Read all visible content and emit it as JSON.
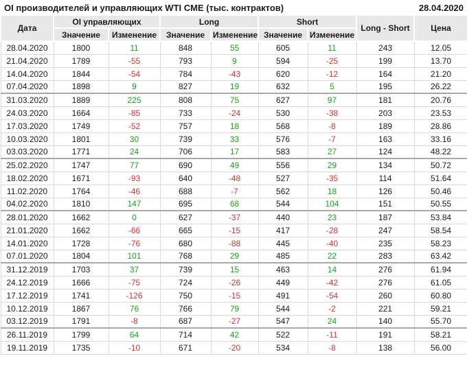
{
  "title": "OI производителей и управляющих WTI CME (тыс. контрактов)",
  "report_date": "28.04.2020",
  "colors": {
    "positive": "#17a317",
    "negative": "#cc3333",
    "header_bg": "#e8e8e8",
    "grid": "#d9d9d9",
    "month_separator": "#a8a8a8"
  },
  "table": {
    "headers": {
      "date": "Дата",
      "groups": [
        {
          "label": "OI управляющих"
        },
        {
          "label": "Long"
        },
        {
          "label": "Short"
        }
      ],
      "sub_value": "Значение",
      "sub_change": "Изменение",
      "long_short": "Long - Short",
      "price": "Цена"
    },
    "rows": [
      {
        "date": "28.04.2020",
        "oi_value": "1800",
        "oi_change": "11",
        "long_value": "848",
        "long_change": "55",
        "short_value": "605",
        "short_change": "11",
        "long_short": "243",
        "price": "12.05",
        "month_start": false
      },
      {
        "date": "21.04.2020",
        "oi_value": "1789",
        "oi_change": "-55",
        "long_value": "793",
        "long_change": "9",
        "short_value": "594",
        "short_change": "-25",
        "long_short": "199",
        "price": "13.70",
        "month_start": false
      },
      {
        "date": "14.04.2020",
        "oi_value": "1844",
        "oi_change": "-54",
        "long_value": "784",
        "long_change": "-43",
        "short_value": "620",
        "short_change": "-12",
        "long_short": "164",
        "price": "21.20",
        "month_start": false
      },
      {
        "date": "07.04.2020",
        "oi_value": "1898",
        "oi_change": "9",
        "long_value": "827",
        "long_change": "19",
        "short_value": "632",
        "short_change": "5",
        "long_short": "195",
        "price": "26.22",
        "month_start": false
      },
      {
        "date": "31.03.2020",
        "oi_value": "1889",
        "oi_change": "225",
        "long_value": "808",
        "long_change": "75",
        "short_value": "627",
        "short_change": "97",
        "long_short": "181",
        "price": "20.76",
        "month_start": true
      },
      {
        "date": "24.03.2020",
        "oi_value": "1664",
        "oi_change": "-85",
        "long_value": "733",
        "long_change": "-24",
        "short_value": "530",
        "short_change": "-38",
        "long_short": "203",
        "price": "23.53",
        "month_start": false
      },
      {
        "date": "17.03.2020",
        "oi_value": "1749",
        "oi_change": "-52",
        "long_value": "757",
        "long_change": "18",
        "short_value": "568",
        "short_change": "-8",
        "long_short": "189",
        "price": "28.86",
        "month_start": false
      },
      {
        "date": "10.03.2020",
        "oi_value": "1801",
        "oi_change": "30",
        "long_value": "739",
        "long_change": "33",
        "short_value": "576",
        "short_change": "-7",
        "long_short": "163",
        "price": "33.16",
        "month_start": false
      },
      {
        "date": "03.03.2020",
        "oi_value": "1771",
        "oi_change": "24",
        "long_value": "706",
        "long_change": "17",
        "short_value": "583",
        "short_change": "27",
        "long_short": "124",
        "price": "48.22",
        "month_start": false
      },
      {
        "date": "25.02.2020",
        "oi_value": "1747",
        "oi_change": "77",
        "long_value": "690",
        "long_change": "49",
        "short_value": "556",
        "short_change": "29",
        "long_short": "134",
        "price": "50.72",
        "month_start": true
      },
      {
        "date": "18.02.2020",
        "oi_value": "1671",
        "oi_change": "-93",
        "long_value": "640",
        "long_change": "-48",
        "short_value": "527",
        "short_change": "-35",
        "long_short": "114",
        "price": "51.64",
        "month_start": false
      },
      {
        "date": "11.02.2020",
        "oi_value": "1764",
        "oi_change": "-46",
        "long_value": "688",
        "long_change": "-7",
        "short_value": "562",
        "short_change": "18",
        "long_short": "126",
        "price": "50.46",
        "month_start": false
      },
      {
        "date": "04.02.2020",
        "oi_value": "1810",
        "oi_change": "147",
        "long_value": "695",
        "long_change": "68",
        "short_value": "544",
        "short_change": "104",
        "long_short": "151",
        "price": "50.55",
        "month_start": false
      },
      {
        "date": "28.01.2020",
        "oi_value": "1662",
        "oi_change": "0",
        "long_value": "627",
        "long_change": "-37",
        "short_value": "440",
        "short_change": "23",
        "long_short": "187",
        "price": "53.84",
        "month_start": true
      },
      {
        "date": "21.01.2020",
        "oi_value": "1662",
        "oi_change": "-66",
        "long_value": "665",
        "long_change": "-15",
        "short_value": "417",
        "short_change": "-28",
        "long_short": "247",
        "price": "58.54",
        "month_start": false
      },
      {
        "date": "14.01.2020",
        "oi_value": "1728",
        "oi_change": "-76",
        "long_value": "680",
        "long_change": "-88",
        "short_value": "445",
        "short_change": "-40",
        "long_short": "235",
        "price": "58.23",
        "month_start": false
      },
      {
        "date": "07.01.2020",
        "oi_value": "1804",
        "oi_change": "101",
        "long_value": "768",
        "long_change": "29",
        "short_value": "485",
        "short_change": "22",
        "long_short": "283",
        "price": "63.42",
        "month_start": false
      },
      {
        "date": "31.12.2019",
        "oi_value": "1703",
        "oi_change": "37",
        "long_value": "739",
        "long_change": "15",
        "short_value": "463",
        "short_change": "14",
        "long_short": "276",
        "price": "61.94",
        "month_start": true
      },
      {
        "date": "24.12.2019",
        "oi_value": "1666",
        "oi_change": "-75",
        "long_value": "724",
        "long_change": "-26",
        "short_value": "449",
        "short_change": "-42",
        "long_short": "276",
        "price": "61.05",
        "month_start": false
      },
      {
        "date": "17.12.2019",
        "oi_value": "1741",
        "oi_change": "-126",
        "long_value": "750",
        "long_change": "-15",
        "short_value": "491",
        "short_change": "-54",
        "long_short": "260",
        "price": "60.80",
        "month_start": false
      },
      {
        "date": "10.12.2019",
        "oi_value": "1867",
        "oi_change": "76",
        "long_value": "766",
        "long_change": "79",
        "short_value": "544",
        "short_change": "-2",
        "long_short": "221",
        "price": "59.21",
        "month_start": false
      },
      {
        "date": "03.12.2019",
        "oi_value": "1791",
        "oi_change": "-8",
        "long_value": "687",
        "long_change": "-27",
        "short_value": "547",
        "short_change": "24",
        "long_short": "140",
        "price": "55.70",
        "month_start": false
      },
      {
        "date": "26.11.2019",
        "oi_value": "1799",
        "oi_change": "64",
        "long_value": "714",
        "long_change": "42",
        "short_value": "522",
        "short_change": "-11",
        "long_short": "191",
        "price": "58.21",
        "month_start": true
      },
      {
        "date": "19.11.2019",
        "oi_value": "1735",
        "oi_change": "-10",
        "long_value": "671",
        "long_change": "-20",
        "short_value": "534",
        "short_change": "-8",
        "long_short": "138",
        "price": "56.00",
        "month_start": false
      }
    ]
  }
}
